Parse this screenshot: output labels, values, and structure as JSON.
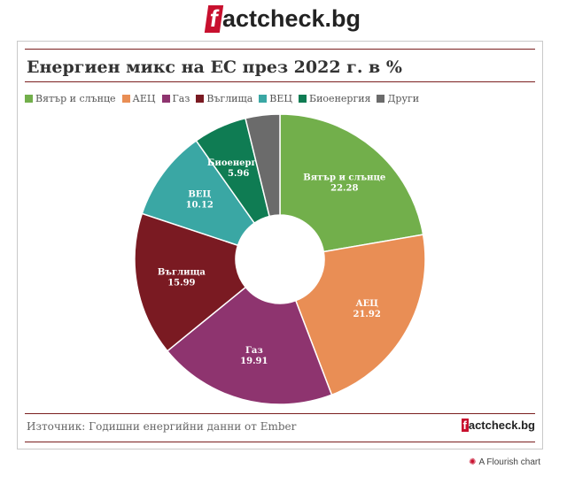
{
  "brand": {
    "logo_letter": "f",
    "logo_rest": "actcheck.bg"
  },
  "chart_data": {
    "type": "pie",
    "title": "Енергиен микс на ЕС през 2022 г. в %",
    "categories": [
      "Вятър и слънце",
      "АЕЦ",
      "Газ",
      "Въглища",
      "ВЕЦ",
      "Биоенергия",
      "Други"
    ],
    "values": [
      22.28,
      21.92,
      19.91,
      15.99,
      10.12,
      5.96,
      3.82
    ],
    "value_labels": [
      "22.28",
      "21.92",
      "19.91",
      "15.99",
      "10.12",
      "5.96",
      ""
    ],
    "colors": [
      "#72af4b",
      "#e98e55",
      "#8e346f",
      "#7a1a22",
      "#3aa7a4",
      "#0f7c53",
      "#6b6b6b"
    ],
    "donut": true,
    "legend_position": "top"
  },
  "footer": {
    "source": "Източник: Годишни енергийни данни от Ember",
    "flourish": "A Flourish chart"
  }
}
